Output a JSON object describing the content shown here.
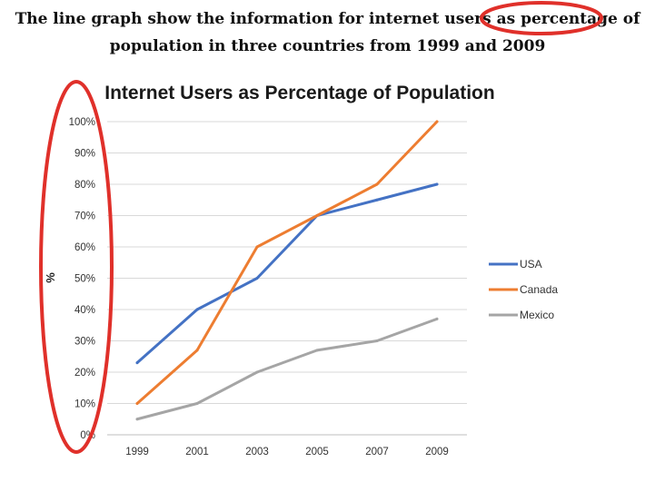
{
  "heading": {
    "line1": "The line graph show the information for internet users as percentage of",
    "line2": "population in three countries from 1999 and 2009"
  },
  "annotation_color": "#e0302a",
  "chart_data": {
    "type": "line",
    "title": "Internet Users as Percentage of Population",
    "xlabel": "",
    "ylabel": "%",
    "categories": [
      "1999",
      "2001",
      "2003",
      "2005",
      "2007",
      "2009"
    ],
    "ylim": [
      0,
      100
    ],
    "yticks": [
      "0%",
      "10%",
      "20%",
      "30%",
      "40%",
      "50%",
      "60%",
      "70%",
      "80%",
      "90%",
      "100%"
    ],
    "grid": true,
    "legend_position": "right",
    "series": [
      {
        "name": "USA",
        "color": "#4472c4",
        "values": [
          23,
          40,
          50,
          70,
          75,
          80
        ]
      },
      {
        "name": "Canada",
        "color": "#ed7d31",
        "values": [
          10,
          27,
          60,
          70,
          80,
          100
        ]
      },
      {
        "name": "Mexico",
        "color": "#a5a5a5",
        "values": [
          5,
          10,
          20,
          27,
          30,
          37
        ]
      }
    ]
  }
}
